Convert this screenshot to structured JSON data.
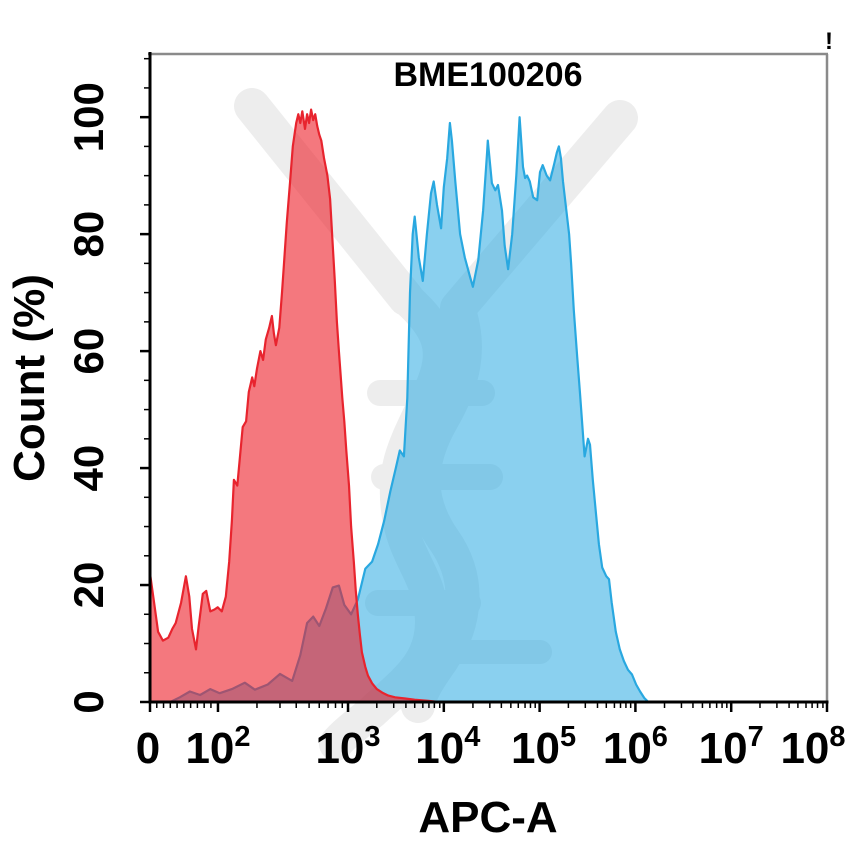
{
  "figure": {
    "alert_glyph": "!"
  },
  "chart_data": {
    "type": "area",
    "chart_kind": "flow-cytometry-overlaid-histograms",
    "title": "BME100206",
    "xlabel": "APC-A",
    "ylabel": "Count (%)",
    "legend": "none",
    "grid": "off",
    "x_scale": "biexponential-log",
    "x_scale_note": "point x values are fractions (0-1) of axis length; labeled tick anchors below give the scale",
    "x_ticks": [
      {
        "base": "0",
        "exp": "",
        "u": 0.0,
        "dx": -2
      },
      {
        "base": "10",
        "exp": "2",
        "u": 0.1004,
        "dx": 0
      },
      {
        "base": "10",
        "exp": "3",
        "u": 0.2925,
        "dx": 0
      },
      {
        "base": "10",
        "exp": "4",
        "u": 0.434,
        "dx": 4
      },
      {
        "base": "10",
        "exp": "5",
        "u": 0.5755,
        "dx": 4
      },
      {
        "base": "10",
        "exp": "6",
        "u": 0.717,
        "dx": 0
      },
      {
        "base": "10",
        "exp": "7",
        "u": 0.8585,
        "dx": 0
      },
      {
        "base": "10",
        "exp": "8",
        "u": 1.0,
        "dx": -14
      }
    ],
    "x_minor_u": [
      0.01,
      0.02,
      0.03,
      0.04,
      0.05,
      0.06,
      0.07,
      0.08,
      0.09,
      0.158,
      0.192,
      0.216,
      0.235,
      0.25,
      0.263,
      0.274,
      0.284,
      0.335,
      0.36,
      0.378,
      0.391,
      0.403,
      0.412,
      0.42,
      0.428,
      0.477,
      0.502,
      0.519,
      0.533,
      0.544,
      0.554,
      0.562,
      0.569,
      0.618,
      0.643,
      0.661,
      0.674,
      0.686,
      0.695,
      0.703,
      0.71,
      0.76,
      0.785,
      0.802,
      0.816,
      0.827,
      0.837,
      0.845,
      0.852,
      0.901,
      0.926,
      0.944,
      0.957,
      0.969,
      0.978,
      0.986,
      0.994
    ],
    "y_axis": {
      "min": 0,
      "max_label": 100,
      "max_display": 110.8,
      "major_ticks": [
        0,
        20,
        40,
        60,
        80,
        100
      ],
      "minor_ticks": [
        5,
        10,
        15,
        25,
        30,
        35,
        45,
        50,
        55,
        65,
        70,
        75,
        85,
        90,
        95,
        105,
        110
      ]
    },
    "colors": {
      "red_stroke": "#e8242e",
      "red_fill": "rgba(237,30,40,0.60)",
      "blue_stroke": "#29a8e0",
      "blue_fill": "rgba(41,170,226,0.55)",
      "spine_gray": "#8a8a8a",
      "axis_black": "#000000",
      "watermark_gray": "#ededed"
    },
    "series": [
      {
        "name": "blue-histogram",
        "peak_percent": 100,
        "stroke": "#29a8e0",
        "fill": "rgba(41,170,226,0.55)",
        "points": [
          [
            0.03,
            0
          ],
          [
            0.044,
            0.8
          ],
          [
            0.059,
            1.8
          ],
          [
            0.074,
            1.2
          ],
          [
            0.089,
            2.2
          ],
          [
            0.103,
            1.5
          ],
          [
            0.121,
            2.2
          ],
          [
            0.14,
            3.3
          ],
          [
            0.155,
            2.1
          ],
          [
            0.174,
            3
          ],
          [
            0.192,
            4.8
          ],
          [
            0.21,
            3.6
          ],
          [
            0.222,
            8
          ],
          [
            0.232,
            13.5
          ],
          [
            0.241,
            14.6
          ],
          [
            0.25,
            13
          ],
          [
            0.26,
            16
          ],
          [
            0.27,
            19.6
          ],
          [
            0.279,
            19.9
          ],
          [
            0.287,
            16.6
          ],
          [
            0.297,
            15
          ],
          [
            0.307,
            17.5
          ],
          [
            0.318,
            22.8
          ],
          [
            0.328,
            24
          ],
          [
            0.337,
            27
          ],
          [
            0.346,
            31
          ],
          [
            0.355,
            36
          ],
          [
            0.363,
            40
          ],
          [
            0.369,
            43
          ],
          [
            0.375,
            42
          ],
          [
            0.38,
            52
          ],
          [
            0.384,
            70
          ],
          [
            0.388,
            80
          ],
          [
            0.391,
            83
          ],
          [
            0.397,
            76
          ],
          [
            0.403,
            72
          ],
          [
            0.409,
            80
          ],
          [
            0.415,
            87
          ],
          [
            0.419,
            89
          ],
          [
            0.424,
            85
          ],
          [
            0.43,
            81
          ],
          [
            0.434,
            88
          ],
          [
            0.439,
            93
          ],
          [
            0.443,
            99
          ],
          [
            0.446,
            96
          ],
          [
            0.451,
            89
          ],
          [
            0.458,
            80
          ],
          [
            0.465,
            76
          ],
          [
            0.473,
            72.6
          ],
          [
            0.477,
            71
          ],
          [
            0.485,
            75.6
          ],
          [
            0.492,
            84
          ],
          [
            0.498,
            94
          ],
          [
            0.499,
            96
          ],
          [
            0.505,
            88.7
          ],
          [
            0.51,
            87.5
          ],
          [
            0.514,
            88.4
          ],
          [
            0.52,
            84
          ],
          [
            0.524,
            78
          ],
          [
            0.529,
            74
          ],
          [
            0.535,
            80
          ],
          [
            0.541,
            90
          ],
          [
            0.546,
            100
          ],
          [
            0.551,
            91.5
          ],
          [
            0.554,
            89.6
          ],
          [
            0.557,
            90
          ],
          [
            0.561,
            89
          ],
          [
            0.566,
            86.3
          ],
          [
            0.572,
            85.8
          ],
          [
            0.576,
            90.6
          ],
          [
            0.58,
            91.8
          ],
          [
            0.586,
            90
          ],
          [
            0.591,
            89.2
          ],
          [
            0.597,
            92
          ],
          [
            0.601,
            94
          ],
          [
            0.604,
            95
          ],
          [
            0.607,
            93
          ],
          [
            0.61,
            89
          ],
          [
            0.614,
            85
          ],
          [
            0.619,
            80
          ],
          [
            0.622,
            75
          ],
          [
            0.626,
            67
          ],
          [
            0.631,
            59
          ],
          [
            0.635,
            53
          ],
          [
            0.64,
            45
          ],
          [
            0.642,
            42
          ],
          [
            0.647,
            45
          ],
          [
            0.65,
            44
          ],
          [
            0.654,
            38
          ],
          [
            0.659,
            32
          ],
          [
            0.663,
            27
          ],
          [
            0.668,
            23
          ],
          [
            0.674,
            21.5
          ],
          [
            0.678,
            21
          ],
          [
            0.682,
            17
          ],
          [
            0.688,
            12
          ],
          [
            0.694,
            9
          ],
          [
            0.7,
            7
          ],
          [
            0.706,
            5.5
          ],
          [
            0.712,
            4.7
          ],
          [
            0.718,
            3
          ],
          [
            0.724,
            1.8
          ],
          [
            0.73,
            0.7
          ],
          [
            0.736,
            0
          ]
        ]
      },
      {
        "name": "red-histogram",
        "peak_percent": 100,
        "stroke": "#e8242e",
        "fill": "rgba(237,30,40,0.60)",
        "points": [
          [
            0,
            22
          ],
          [
            0.006,
            17
          ],
          [
            0.012,
            12
          ],
          [
            0.019,
            10.5
          ],
          [
            0.027,
            11
          ],
          [
            0.033,
            12.5
          ],
          [
            0.038,
            13.5
          ],
          [
            0.046,
            17
          ],
          [
            0.053,
            21.5
          ],
          [
            0.058,
            18
          ],
          [
            0.062,
            12.5
          ],
          [
            0.068,
            9
          ],
          [
            0.072,
            13
          ],
          [
            0.078,
            18.5
          ],
          [
            0.083,
            19
          ],
          [
            0.089,
            15.5
          ],
          [
            0.095,
            15.8
          ],
          [
            0.1,
            16.2
          ],
          [
            0.106,
            15.5
          ],
          [
            0.112,
            18
          ],
          [
            0.117,
            24
          ],
          [
            0.121,
            31
          ],
          [
            0.124,
            38
          ],
          [
            0.129,
            37
          ],
          [
            0.133,
            42
          ],
          [
            0.137,
            47
          ],
          [
            0.142,
            48
          ],
          [
            0.146,
            53
          ],
          [
            0.151,
            55.5
          ],
          [
            0.154,
            54
          ],
          [
            0.158,
            57
          ],
          [
            0.163,
            60
          ],
          [
            0.167,
            58.5
          ],
          [
            0.171,
            62
          ],
          [
            0.176,
            64
          ],
          [
            0.18,
            66
          ],
          [
            0.183,
            63
          ],
          [
            0.186,
            61
          ],
          [
            0.191,
            64
          ],
          [
            0.195,
            70
          ],
          [
            0.198,
            75
          ],
          [
            0.202,
            82
          ],
          [
            0.207,
            89
          ],
          [
            0.211,
            95
          ],
          [
            0.216,
            99
          ],
          [
            0.219,
            100.5
          ],
          [
            0.222,
            99
          ],
          [
            0.225,
            101
          ],
          [
            0.229,
            98
          ],
          [
            0.232,
            100.5
          ],
          [
            0.235,
            99
          ],
          [
            0.238,
            101.3
          ],
          [
            0.241,
            99.5
          ],
          [
            0.244,
            100.5
          ],
          [
            0.247,
            98.5
          ],
          [
            0.25,
            97
          ],
          [
            0.253,
            96
          ],
          [
            0.257,
            93
          ],
          [
            0.262,
            90
          ],
          [
            0.266,
            86
          ],
          [
            0.269,
            80
          ],
          [
            0.273,
            72
          ],
          [
            0.276,
            65
          ],
          [
            0.279,
            60
          ],
          [
            0.284,
            52
          ],
          [
            0.287,
            48
          ],
          [
            0.29,
            43
          ],
          [
            0.294,
            37
          ],
          [
            0.297,
            30
          ],
          [
            0.301,
            24
          ],
          [
            0.304,
            19
          ],
          [
            0.307,
            15
          ],
          [
            0.31,
            11.5
          ],
          [
            0.313,
            8.5
          ],
          [
            0.318,
            6
          ],
          [
            0.322,
            4.5
          ],
          [
            0.328,
            3.2
          ],
          [
            0.335,
            2.2
          ],
          [
            0.343,
            1.6
          ],
          [
            0.352,
            1.1
          ],
          [
            0.362,
            0.8
          ],
          [
            0.377,
            0.6
          ],
          [
            0.391,
            0.4
          ],
          [
            0.411,
            0.2
          ],
          [
            0.428,
            0
          ]
        ]
      }
    ]
  }
}
